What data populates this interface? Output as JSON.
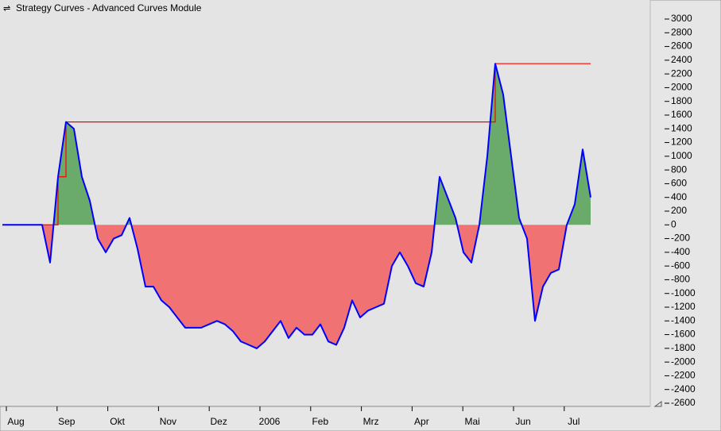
{
  "window_title": "Strategy Curves - Advanced Curves Module",
  "chart_data": {
    "type": "line",
    "xticks": [
      "Aug",
      "Sep",
      "Okt",
      "Nov",
      "Dez",
      "2006",
      "Feb",
      "Mrz",
      "Apr",
      "Mai",
      "Jun",
      "Jul"
    ],
    "series": [
      {
        "color": "#0000ff",
        "values": [
          0,
          0,
          0,
          0,
          0,
          0,
          -550,
          700,
          1500,
          1400,
          700,
          350,
          -200,
          -400,
          -200,
          -150,
          100,
          -350,
          -900,
          -900,
          -1100,
          -1200,
          -1350,
          -1500,
          -1500,
          -1500,
          -1450,
          -1400,
          -1450,
          -1550,
          -1700,
          -1750,
          -1800,
          -1700,
          -1550,
          -1400,
          -1650,
          -1500,
          -1600,
          -1600,
          -1450,
          -1700,
          -1750,
          -1500,
          -1100,
          -1350,
          -1250,
          -1200,
          -1150,
          -600,
          -400,
          -600,
          -850,
          -900,
          -400,
          700,
          400,
          100,
          -400,
          -550,
          0,
          1000,
          2350,
          1900,
          1000,
          100,
          -200,
          -1400,
          -900,
          -700,
          -650,
          0,
          300,
          1100,
          400
        ]
      }
    ],
    "high_water_color": "#ff0000",
    "fill_positive": "#6aaa6a",
    "fill_negative": "#f07272",
    "ylim": [
      -2600,
      3000
    ],
    "yticks": [
      3000,
      2800,
      2600,
      2400,
      2200,
      2000,
      1800,
      1600,
      1400,
      1200,
      1000,
      800,
      600,
      400,
      200,
      0,
      -200,
      -400,
      -600,
      -800,
      -1000,
      -1200,
      -1400,
      -1600,
      -1800,
      -2000,
      -2200,
      -2400,
      -2600
    ]
  }
}
